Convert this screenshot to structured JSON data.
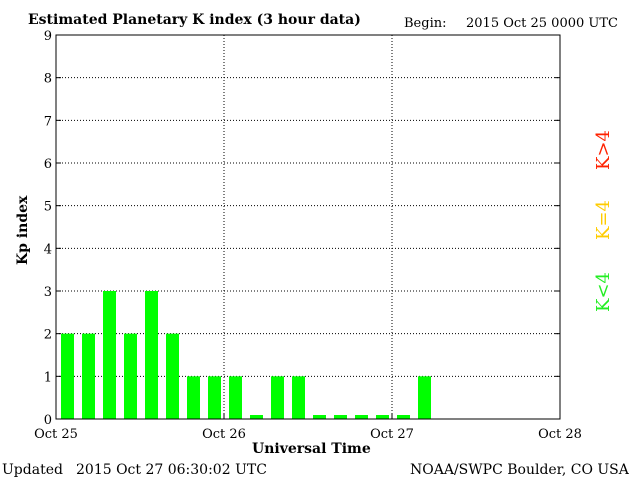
{
  "header": {
    "title": "Estimated Planetary K index (3 hour data)",
    "begin_label": "Begin:",
    "begin_value": "2015 Oct 25 0000 UTC"
  },
  "footer": {
    "updated_label": "Updated",
    "updated_value": "2015 Oct 27 06:30:02 UTC",
    "credit": "NOAA/SWPC Boulder, CO USA"
  },
  "legend": [
    {
      "label": "K>4",
      "color": "#ff2200"
    },
    {
      "label": "K=4",
      "color": "#ffcc00"
    },
    {
      "label": "K<4",
      "color": "#22ee22"
    }
  ],
  "chart_data": {
    "type": "bar",
    "title": "Estimated Planetary K index (3 hour data)",
    "xlabel": "Universal Time",
    "ylabel": "Kp index",
    "ylim": [
      0,
      9
    ],
    "yticks": [
      0,
      1,
      2,
      3,
      4,
      5,
      6,
      7,
      8,
      9
    ],
    "xticks": [
      "Oct 25",
      "Oct 26",
      "Oct 27",
      "Oct 28"
    ],
    "grid": true,
    "bar_color": "#00ff00",
    "categories": [
      "Oct 25 00",
      "Oct 25 03",
      "Oct 25 06",
      "Oct 25 09",
      "Oct 25 12",
      "Oct 25 15",
      "Oct 25 18",
      "Oct 25 21",
      "Oct 26 00",
      "Oct 26 03",
      "Oct 26 06",
      "Oct 26 09",
      "Oct 26 12",
      "Oct 26 15",
      "Oct 26 18",
      "Oct 26 21",
      "Oct 27 00",
      "Oct 27 03"
    ],
    "values": [
      2,
      2,
      3,
      2,
      3,
      2,
      1,
      1,
      1,
      0,
      1,
      1,
      0,
      0,
      0,
      0,
      0,
      1
    ]
  }
}
